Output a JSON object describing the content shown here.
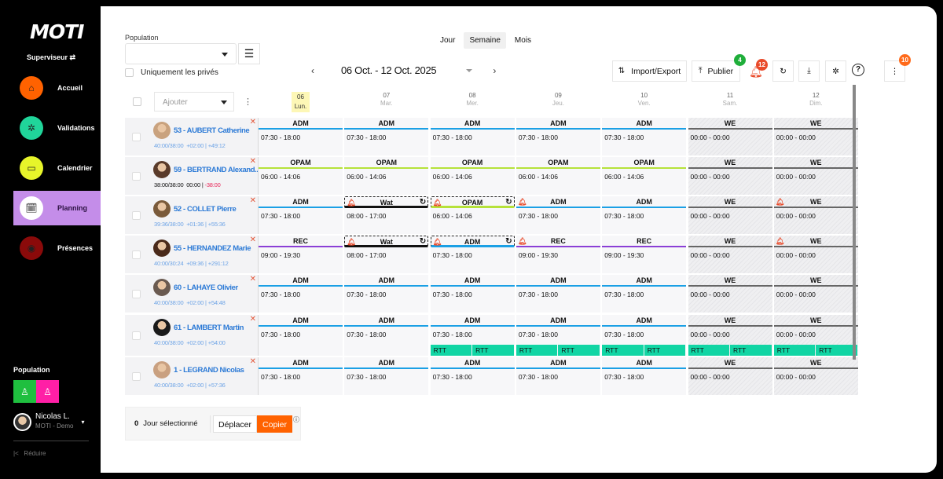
{
  "sidebar": {
    "logo": "MOTI",
    "role": "Superviseur ⇄",
    "items": [
      {
        "label": "Accueil",
        "icon": "home-icon",
        "color": "#ff6200",
        "glyph": "⌂",
        "active": false
      },
      {
        "label": "Validations",
        "icon": "network-icon",
        "color": "#20d59a",
        "glyph": "✲",
        "active": false
      },
      {
        "label": "Calendrier",
        "icon": "calendar-icon",
        "color": "#e7f52a",
        "glyph": "▭",
        "active": false
      },
      {
        "label": "Planning",
        "icon": "planning-icon",
        "color": "#ffffff",
        "glyph": "🗓",
        "active": true
      },
      {
        "label": "Présences",
        "icon": "eye-icon",
        "color": "#8a0a0a",
        "glyph": "◉",
        "active": false
      }
    ],
    "population_label": "Population",
    "population_buttons": [
      {
        "color": "#1fbf3f"
      },
      {
        "color": "#ff1fa6"
      }
    ],
    "user": {
      "name": "Nicolas L.",
      "company": "MOTI - Demo"
    },
    "reduce_label": "Réduire",
    "reduce_icon": "|<"
  },
  "toolbar": {
    "population_label": "Population",
    "population_value": "",
    "private_only_label": "Uniquement les privés",
    "views": [
      "Jour",
      "Semaine",
      "Mois"
    ],
    "active_view": "Semaine",
    "date_range": "06 Oct. - 12 Oct. 2025",
    "prev": "‹",
    "next": "›",
    "import_export_label": "Import/Export",
    "publish_label": "Publier",
    "publish_badge": "4",
    "alerts_badge": "12",
    "more_badge": "10"
  },
  "grid": {
    "add_placeholder": "Ajouter",
    "days": [
      {
        "num": "06",
        "name": "Lun.",
        "today": true
      },
      {
        "num": "07",
        "name": "Mar."
      },
      {
        "num": "08",
        "name": "Mer."
      },
      {
        "num": "09",
        "name": "Jeu."
      },
      {
        "num": "10",
        "name": "Ven."
      },
      {
        "num": "11",
        "name": "Sam."
      },
      {
        "num": "12",
        "name": "Dim."
      }
    ],
    "employees": [
      {
        "name": "53 - AUBERT Catherine",
        "hours": "40:00/38:00",
        "delta": "+02:00",
        "total": "+49:12"
      },
      {
        "name": "59 - BERTRAND Alexand...",
        "hours": "38:00/38:00",
        "delta": "00:00",
        "total": "-38:00"
      },
      {
        "name": "52 - COLLET Pierre",
        "hours": "39:36/38:00",
        "delta": "+01:36",
        "total": "+55:36"
      },
      {
        "name": "55 - HERNANDEZ Marie",
        "hours": "40:00/30:24",
        "delta": "+09:36",
        "total": "+291:12"
      },
      {
        "name": "60 - LAHAYE Olivier",
        "hours": "40:00/38:00",
        "delta": "+02:00",
        "total": "+54:48"
      },
      {
        "name": "61 - LAMBERT Martin",
        "hours": "40:00/38:00",
        "delta": "+02:00",
        "total": "+54:00"
      },
      {
        "name": "1 - LEGRAND Nicolas",
        "hours": "40:00/38:00",
        "delta": "+02:00",
        "total": "+57:36"
      }
    ],
    "shifts": [
      [
        [
          "ADM",
          "07:30 - 18:00"
        ],
        [
          "ADM",
          "07:30 - 18:00"
        ],
        [
          "ADM",
          "07:30 - 18:00"
        ],
        [
          "ADM",
          "07:30 - 18:00"
        ],
        [
          "ADM",
          "07:30 - 18:00"
        ],
        [
          "WE",
          "00:00 - 00:00"
        ],
        [
          "WE",
          "00:00 - 00:00"
        ]
      ],
      [
        [
          "OPAM",
          "06:00 - 14:06"
        ],
        [
          "OPAM",
          "06:00 - 14:06"
        ],
        [
          "OPAM",
          "06:00 - 14:06"
        ],
        [
          "OPAM",
          "06:00 - 14:06"
        ],
        [
          "OPAM",
          "06:00 - 14:06"
        ],
        [
          "WE",
          "00:00 - 00:00"
        ],
        [
          "WE",
          "00:00 - 00:00"
        ]
      ],
      [
        [
          "ADM",
          "07:30 - 18:00"
        ],
        [
          "Wat",
          "08:00 - 17:00"
        ],
        [
          "OPAM",
          "06:00 - 14:06"
        ],
        [
          "ADM",
          "07:30 - 18:00"
        ],
        [
          "ADM",
          "07:30 - 18:00"
        ],
        [
          "WE",
          "00:00 - 00:00"
        ],
        [
          "WE",
          "00:00 - 00:00"
        ]
      ],
      [
        [
          "REC",
          "09:00 - 19:30"
        ],
        [
          "Wat",
          "08:00 - 17:00"
        ],
        [
          "ADM",
          "07:30 - 18:00"
        ],
        [
          "REC",
          "09:00 - 19:30"
        ],
        [
          "REC",
          "09:00 - 19:30"
        ],
        [
          "WE",
          "00:00 - 00:00"
        ],
        [
          "WE",
          "00:00 - 00:00"
        ]
      ],
      [
        [
          "ADM",
          "07:30 - 18:00"
        ],
        [
          "ADM",
          "07:30 - 18:00"
        ],
        [
          "ADM",
          "07:30 - 18:00"
        ],
        [
          "ADM",
          "07:30 - 18:00"
        ],
        [
          "ADM",
          "07:30 - 18:00"
        ],
        [
          "WE",
          "00:00 - 00:00"
        ],
        [
          "WE",
          "00:00 - 00:00"
        ]
      ],
      [
        [
          "ADM",
          "07:30 - 18:00"
        ],
        [
          "ADM",
          "07:30 - 18:00"
        ],
        [
          "ADM",
          "07:30 - 18:00"
        ],
        [
          "ADM",
          "07:30 - 18:00"
        ],
        [
          "ADM",
          "07:30 - 18:00"
        ],
        [
          "WE",
          "00:00 - 00:00"
        ],
        [
          "WE",
          "00:00 - 00:00"
        ]
      ],
      [
        [
          "ADM",
          "07:30 - 18:00"
        ],
        [
          "ADM",
          "07:30 - 18:00"
        ],
        [
          "ADM",
          "07:30 - 18:00"
        ],
        [
          "ADM",
          "07:30 - 18:00"
        ],
        [
          "ADM",
          "07:30 - 18:00"
        ],
        [
          "WE",
          "00:00 - 00:00"
        ],
        [
          "WE",
          "00:00 - 00:00"
        ]
      ]
    ],
    "rtt_label": "RTT",
    "code_colors": {
      "ADM": "#1ba0e5",
      "OPAM": "#b6e23a",
      "REC": "#8b3fd6",
      "WE": "#666666",
      "Wat": "#111111"
    }
  },
  "footer": {
    "count": "0",
    "count_label": "Jour sélectionné",
    "move_label": "Déplacer",
    "copy_label": "Copier",
    "info_icon": "ⓘ"
  }
}
